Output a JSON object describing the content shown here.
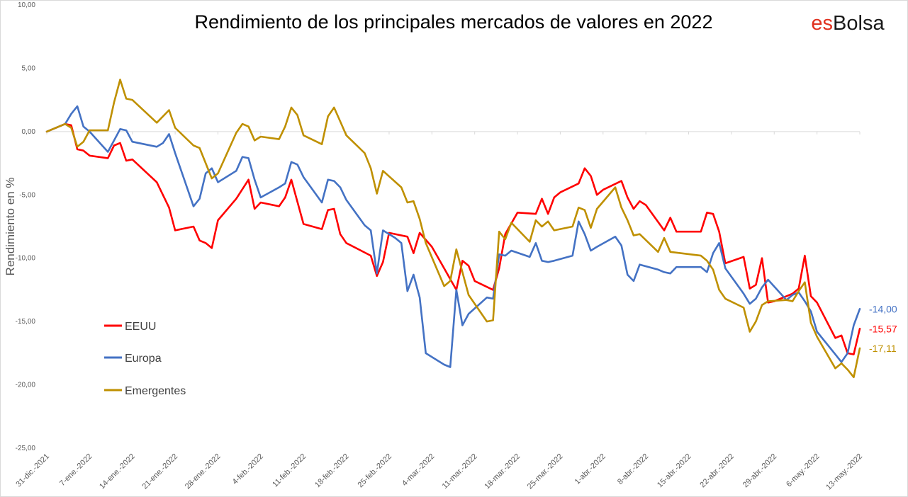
{
  "chart_data": {
    "type": "line",
    "title": "Rendimiento de los principales mercados de valores en 2022",
    "brand": {
      "part1": "es",
      "part2": "Bolsa"
    },
    "ylabel": "Rendimiento en %",
    "xlabel": "",
    "ylim": [
      -25,
      10
    ],
    "y_ticks": [
      "10,00",
      "5,00",
      "0,00",
      "-5,00",
      "-10,00",
      "-15,00",
      "-20,00",
      "-25,00"
    ],
    "x_range": [
      0,
      133
    ],
    "x_ticks": [
      {
        "label": "31-dic.-2021",
        "day": 0
      },
      {
        "label": "7-ene.-2022",
        "day": 7
      },
      {
        "label": "14-ene.-2022",
        "day": 14
      },
      {
        "label": "21-ene.-2022",
        "day": 21
      },
      {
        "label": "28-ene.-2022",
        "day": 28
      },
      {
        "label": "4-feb.-2022",
        "day": 35
      },
      {
        "label": "11-feb.-2022",
        "day": 42
      },
      {
        "label": "18-feb.-2022",
        "day": 49
      },
      {
        "label": "25-feb.-2022",
        "day": 56
      },
      {
        "label": "4-mar.-2022",
        "day": 63
      },
      {
        "label": "11-mar.-2022",
        "day": 70
      },
      {
        "label": "18-mar.-2022",
        "day": 77
      },
      {
        "label": "25-mar.-2022",
        "day": 84
      },
      {
        "label": "1-abr.-2022",
        "day": 91
      },
      {
        "label": "8-abr.-2022",
        "day": 98
      },
      {
        "label": "15-abr.-2022",
        "day": 105
      },
      {
        "label": "22-abr.-2022",
        "day": 112
      },
      {
        "label": "29-abr.-2022",
        "day": 119
      },
      {
        "label": "6-may.-2022",
        "day": 126
      },
      {
        "label": "13-may.-2022",
        "day": 133
      }
    ],
    "grid": false,
    "legend_position": "left",
    "series": [
      {
        "name": "EEUU",
        "color": "#ff0000",
        "end_label": "-15,57",
        "points": [
          [
            0,
            0
          ],
          [
            3,
            0.6
          ],
          [
            4,
            0.5
          ],
          [
            5,
            -1.4
          ],
          [
            6,
            -1.5
          ],
          [
            7,
            -1.9
          ],
          [
            10,
            -2.1
          ],
          [
            11,
            -1.1
          ],
          [
            12,
            -0.9
          ],
          [
            13,
            -2.3
          ],
          [
            14,
            -2.2
          ],
          [
            18,
            -4.0
          ],
          [
            20,
            -6.0
          ],
          [
            21,
            -7.8
          ],
          [
            24,
            -7.5
          ],
          [
            25,
            -8.6
          ],
          [
            26,
            -8.8
          ],
          [
            27,
            -9.2
          ],
          [
            28,
            -7.0
          ],
          [
            31,
            -5.3
          ],
          [
            33,
            -3.8
          ],
          [
            34,
            -6.1
          ],
          [
            35,
            -5.6
          ],
          [
            38,
            -5.9
          ],
          [
            39,
            -5.2
          ],
          [
            40,
            -3.8
          ],
          [
            42,
            -7.3
          ],
          [
            45,
            -7.7
          ],
          [
            46,
            -6.2
          ],
          [
            47,
            -6.1
          ],
          [
            48,
            -8.1
          ],
          [
            49,
            -8.8
          ],
          [
            53,
            -9.8
          ],
          [
            54,
            -11.4
          ],
          [
            55,
            -10.3
          ],
          [
            56,
            -8.0
          ],
          [
            59,
            -8.3
          ],
          [
            60,
            -9.6
          ],
          [
            61,
            -8.0
          ],
          [
            63,
            -9.1
          ],
          [
            65,
            -10.8
          ],
          [
            67,
            -12.5
          ],
          [
            68,
            -10.2
          ],
          [
            69,
            -10.6
          ],
          [
            70,
            -11.8
          ],
          [
            73,
            -12.5
          ],
          [
            74,
            -10.8
          ],
          [
            75,
            -8.1
          ],
          [
            77,
            -6.4
          ],
          [
            80,
            -6.5
          ],
          [
            81,
            -5.3
          ],
          [
            82,
            -6.5
          ],
          [
            83,
            -5.2
          ],
          [
            84,
            -4.8
          ],
          [
            87,
            -4.1
          ],
          [
            88,
            -2.9
          ],
          [
            89,
            -3.5
          ],
          [
            90,
            -5.0
          ],
          [
            91,
            -4.6
          ],
          [
            94,
            -3.9
          ],
          [
            95,
            -5.2
          ],
          [
            96,
            -6.1
          ],
          [
            97,
            -5.5
          ],
          [
            98,
            -5.8
          ],
          [
            101,
            -7.8
          ],
          [
            102,
            -6.8
          ],
          [
            103,
            -7.9
          ],
          [
            107,
            -7.9
          ],
          [
            108,
            -6.4
          ],
          [
            109,
            -6.5
          ],
          [
            110,
            -7.9
          ],
          [
            111,
            -10.4
          ],
          [
            114,
            -9.9
          ],
          [
            115,
            -12.4
          ],
          [
            116,
            -12.1
          ],
          [
            117,
            -10.0
          ],
          [
            118,
            -13.5
          ],
          [
            119,
            -13.4
          ],
          [
            122,
            -12.8
          ],
          [
            123,
            -12.4
          ],
          [
            124,
            -9.8
          ],
          [
            125,
            -13.0
          ],
          [
            126,
            -13.5
          ],
          [
            129,
            -16.3
          ],
          [
            130,
            -16.1
          ],
          [
            131,
            -17.5
          ],
          [
            132,
            -17.6
          ],
          [
            133,
            -15.57
          ]
        ]
      },
      {
        "name": "Europa",
        "color": "#4472c4",
        "end_label": "-14,00",
        "points": [
          [
            0,
            0
          ],
          [
            3,
            0.6
          ],
          [
            4,
            1.4
          ],
          [
            5,
            2.0
          ],
          [
            6,
            0.4
          ],
          [
            7,
            0
          ],
          [
            10,
            -1.6
          ],
          [
            11,
            -0.7
          ],
          [
            12,
            0.2
          ],
          [
            13,
            0.1
          ],
          [
            14,
            -0.8
          ],
          [
            18,
            -1.2
          ],
          [
            19,
            -0.9
          ],
          [
            20,
            -0.2
          ],
          [
            21,
            -1.7
          ],
          [
            24,
            -5.9
          ],
          [
            25,
            -5.3
          ],
          [
            26,
            -3.3
          ],
          [
            27,
            -2.9
          ],
          [
            28,
            -4.0
          ],
          [
            31,
            -3.1
          ],
          [
            32,
            -2.0
          ],
          [
            33,
            -2.1
          ],
          [
            34,
            -3.8
          ],
          [
            35,
            -5.2
          ],
          [
            38,
            -4.4
          ],
          [
            39,
            -4.1
          ],
          [
            40,
            -2.4
          ],
          [
            41,
            -2.6
          ],
          [
            42,
            -3.6
          ],
          [
            45,
            -5.6
          ],
          [
            46,
            -3.8
          ],
          [
            47,
            -3.9
          ],
          [
            48,
            -4.4
          ],
          [
            49,
            -5.4
          ],
          [
            52,
            -7.4
          ],
          [
            53,
            -7.8
          ],
          [
            54,
            -11.2
          ],
          [
            55,
            -7.8
          ],
          [
            57,
            -8.4
          ],
          [
            58,
            -8.8
          ],
          [
            59,
            -12.6
          ],
          [
            60,
            -11.3
          ],
          [
            61,
            -13.1
          ],
          [
            62,
            -17.5
          ],
          [
            65,
            -18.4
          ],
          [
            66,
            -18.6
          ],
          [
            67,
            -12.5
          ],
          [
            68,
            -15.3
          ],
          [
            69,
            -14.4
          ],
          [
            72,
            -13.1
          ],
          [
            73,
            -13.2
          ],
          [
            74,
            -9.7
          ],
          [
            75,
            -9.8
          ],
          [
            76,
            -9.4
          ],
          [
            79,
            -9.9
          ],
          [
            80,
            -8.8
          ],
          [
            81,
            -10.2
          ],
          [
            82,
            -10.3
          ],
          [
            83,
            -10.2
          ],
          [
            86,
            -9.8
          ],
          [
            87,
            -7.1
          ],
          [
            88,
            -8.1
          ],
          [
            89,
            -9.4
          ],
          [
            90,
            -9.1
          ],
          [
            93,
            -8.3
          ],
          [
            94,
            -9.0
          ],
          [
            95,
            -11.3
          ],
          [
            96,
            -11.8
          ],
          [
            97,
            -10.5
          ],
          [
            100,
            -10.9
          ],
          [
            101,
            -11.1
          ],
          [
            102,
            -11.2
          ],
          [
            103,
            -10.7
          ],
          [
            107,
            -10.7
          ],
          [
            108,
            -11.1
          ],
          [
            109,
            -9.6
          ],
          [
            110,
            -8.8
          ],
          [
            111,
            -10.8
          ],
          [
            114,
            -12.8
          ],
          [
            115,
            -13.6
          ],
          [
            116,
            -13.2
          ],
          [
            117,
            -12.3
          ],
          [
            118,
            -11.7
          ],
          [
            121,
            -13.3
          ],
          [
            122,
            -12.9
          ],
          [
            123,
            -12.7
          ],
          [
            124,
            -13.4
          ],
          [
            125,
            -14.2
          ],
          [
            126,
            -15.8
          ],
          [
            129,
            -17.6
          ],
          [
            130,
            -18.2
          ],
          [
            131,
            -17.5
          ],
          [
            132,
            -15.3
          ],
          [
            133,
            -14.0
          ]
        ]
      },
      {
        "name": "Emergentes",
        "color": "#bf9000",
        "end_label": "-17,11",
        "points": [
          [
            0,
            0
          ],
          [
            3,
            0.6
          ],
          [
            4,
            0.3
          ],
          [
            5,
            -1.2
          ],
          [
            6,
            -0.8
          ],
          [
            7,
            0.1
          ],
          [
            10,
            0.1
          ],
          [
            11,
            2.3
          ],
          [
            12,
            4.1
          ],
          [
            13,
            2.6
          ],
          [
            14,
            2.5
          ],
          [
            18,
            0.7
          ],
          [
            20,
            1.7
          ],
          [
            21,
            0.3
          ],
          [
            24,
            -1.1
          ],
          [
            25,
            -1.3
          ],
          [
            27,
            -3.7
          ],
          [
            28,
            -3.3
          ],
          [
            31,
            -0.1
          ],
          [
            32,
            0.6
          ],
          [
            33,
            0.4
          ],
          [
            34,
            -0.7
          ],
          [
            35,
            -0.4
          ],
          [
            38,
            -0.6
          ],
          [
            39,
            0.4
          ],
          [
            40,
            1.9
          ],
          [
            41,
            1.3
          ],
          [
            42,
            -0.3
          ],
          [
            45,
            -1.0
          ],
          [
            46,
            1.2
          ],
          [
            47,
            1.9
          ],
          [
            48,
            0.8
          ],
          [
            49,
            -0.3
          ],
          [
            52,
            -1.7
          ],
          [
            53,
            -2.9
          ],
          [
            54,
            -4.9
          ],
          [
            55,
            -3.1
          ],
          [
            58,
            -4.4
          ],
          [
            59,
            -5.6
          ],
          [
            60,
            -5.5
          ],
          [
            61,
            -6.9
          ],
          [
            62,
            -8.8
          ],
          [
            65,
            -12.2
          ],
          [
            66,
            -11.8
          ],
          [
            67,
            -9.3
          ],
          [
            68,
            -11.1
          ],
          [
            69,
            -12.9
          ],
          [
            72,
            -15.0
          ],
          [
            73,
            -14.9
          ],
          [
            74,
            -7.9
          ],
          [
            75,
            -8.5
          ],
          [
            76,
            -7.2
          ],
          [
            79,
            -8.7
          ],
          [
            80,
            -7.0
          ],
          [
            81,
            -7.5
          ],
          [
            82,
            -7.1
          ],
          [
            83,
            -7.8
          ],
          [
            86,
            -7.5
          ],
          [
            87,
            -6.0
          ],
          [
            88,
            -6.2
          ],
          [
            89,
            -7.6
          ],
          [
            90,
            -6.1
          ],
          [
            93,
            -4.4
          ],
          [
            94,
            -6.0
          ],
          [
            95,
            -7.0
          ],
          [
            96,
            -8.2
          ],
          [
            97,
            -8.1
          ],
          [
            100,
            -9.5
          ],
          [
            101,
            -8.4
          ],
          [
            102,
            -9.5
          ],
          [
            107,
            -9.8
          ],
          [
            108,
            -10.2
          ],
          [
            109,
            -10.9
          ],
          [
            110,
            -12.5
          ],
          [
            111,
            -13.2
          ],
          [
            114,
            -13.9
          ],
          [
            115,
            -15.8
          ],
          [
            116,
            -15.0
          ],
          [
            117,
            -13.7
          ],
          [
            118,
            -13.4
          ],
          [
            121,
            -13.3
          ],
          [
            122,
            -13.4
          ],
          [
            123,
            -12.6
          ],
          [
            124,
            -11.9
          ],
          [
            125,
            -15.1
          ],
          [
            126,
            -16.2
          ],
          [
            129,
            -18.7
          ],
          [
            130,
            -18.3
          ],
          [
            131,
            -18.8
          ],
          [
            132,
            -19.4
          ],
          [
            133,
            -17.11
          ]
        ]
      }
    ]
  }
}
